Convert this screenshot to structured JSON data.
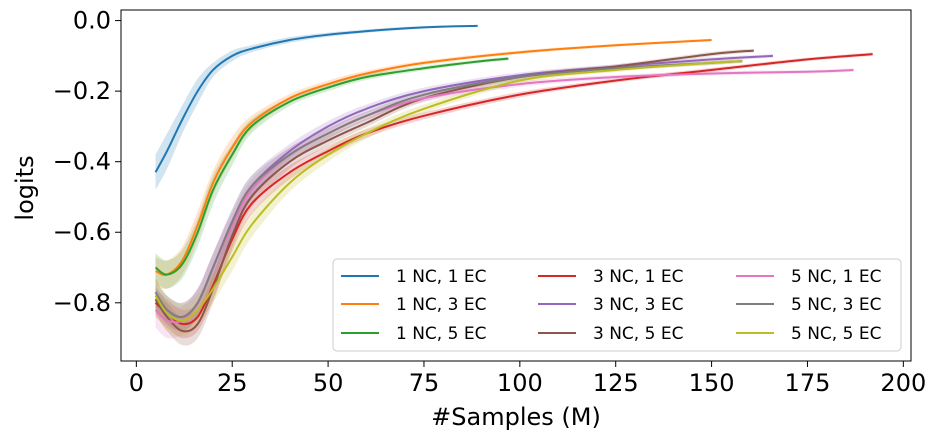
{
  "chart_data": {
    "type": "line",
    "title": "",
    "xlabel": "#Samples (M)",
    "ylabel": "logits",
    "xlim": [
      -4,
      202
    ],
    "ylim": [
      -0.965,
      0.03
    ],
    "xticks": [
      0,
      25,
      50,
      75,
      100,
      125,
      150,
      175,
      200
    ],
    "yticks": [
      0.0,
      -0.2,
      -0.4,
      -0.6,
      -0.8
    ],
    "xtick_labels": [
      "0",
      "25",
      "50",
      "75",
      "100",
      "125",
      "150",
      "175",
      "200"
    ],
    "ytick_labels": [
      "0.0",
      "−0.2",
      "−0.4",
      "−0.6",
      "−0.8"
    ],
    "grid": false,
    "legend_position": "lower-right",
    "legend_columns": 3,
    "series": [
      {
        "name": "1 NC, 1 EC",
        "color": "#1f77b4",
        "x": [
          5,
          8,
          12,
          16,
          20,
          25,
          30,
          40,
          50,
          60,
          70,
          80,
          89
        ],
        "y": [
          -0.43,
          -0.37,
          -0.28,
          -0.2,
          -0.14,
          -0.1,
          -0.08,
          -0.055,
          -0.04,
          -0.03,
          -0.022,
          -0.017,
          -0.015
        ],
        "band": [
          0.05,
          0.05,
          0.04,
          0.035,
          0.02,
          0.015,
          0.01,
          0.008,
          0.006,
          0.005,
          0.004,
          0.003,
          0.003
        ]
      },
      {
        "name": "1 NC, 3 EC",
        "color": "#ff7f0e",
        "x": [
          5,
          8,
          12,
          16,
          20,
          25,
          30,
          40,
          50,
          60,
          75,
          100,
          125,
          150
        ],
        "y": [
          -0.71,
          -0.72,
          -0.68,
          -0.58,
          -0.46,
          -0.36,
          -0.29,
          -0.22,
          -0.18,
          -0.15,
          -0.12,
          -0.09,
          -0.07,
          -0.055
        ],
        "band": [
          0.04,
          0.04,
          0.04,
          0.04,
          0.035,
          0.03,
          0.02,
          0.012,
          0.01,
          0.008,
          0.006,
          0.005,
          0.004,
          0.004
        ]
      },
      {
        "name": "1 NC, 5 EC",
        "color": "#2ca02c",
        "x": [
          5,
          8,
          12,
          16,
          20,
          25,
          30,
          40,
          50,
          60,
          75,
          90,
          97
        ],
        "y": [
          -0.7,
          -0.72,
          -0.69,
          -0.6,
          -0.48,
          -0.38,
          -0.3,
          -0.23,
          -0.19,
          -0.16,
          -0.135,
          -0.115,
          -0.108
        ],
        "band": [
          0.04,
          0.04,
          0.04,
          0.04,
          0.04,
          0.03,
          0.02,
          0.012,
          0.01,
          0.008,
          0.006,
          0.005,
          0.005
        ]
      },
      {
        "name": "3 NC, 1 EC",
        "color": "#d62728",
        "x": [
          5,
          8,
          12,
          16,
          20,
          25,
          30,
          40,
          50,
          60,
          75,
          100,
          125,
          150,
          175,
          192
        ],
        "y": [
          -0.8,
          -0.83,
          -0.86,
          -0.84,
          -0.75,
          -0.62,
          -0.52,
          -0.43,
          -0.37,
          -0.32,
          -0.27,
          -0.21,
          -0.17,
          -0.14,
          -0.11,
          -0.095
        ],
        "band": [
          0.04,
          0.04,
          0.04,
          0.04,
          0.04,
          0.035,
          0.03,
          0.02,
          0.015,
          0.012,
          0.01,
          0.008,
          0.006,
          0.006,
          0.005,
          0.005
        ]
      },
      {
        "name": "3 NC, 3 EC",
        "color": "#9467bd",
        "x": [
          5,
          8,
          12,
          16,
          20,
          25,
          30,
          40,
          50,
          60,
          75,
          100,
          125,
          150,
          166
        ],
        "y": [
          -0.78,
          -0.82,
          -0.84,
          -0.8,
          -0.7,
          -0.57,
          -0.47,
          -0.37,
          -0.3,
          -0.25,
          -0.2,
          -0.155,
          -0.13,
          -0.11,
          -0.1
        ],
        "band": [
          0.04,
          0.04,
          0.04,
          0.04,
          0.04,
          0.035,
          0.03,
          0.02,
          0.015,
          0.012,
          0.01,
          0.008,
          0.006,
          0.006,
          0.005
        ]
      },
      {
        "name": "3 NC, 5 EC",
        "color": "#8c564b",
        "x": [
          5,
          8,
          12,
          16,
          20,
          25,
          30,
          40,
          50,
          60,
          75,
          100,
          125,
          150,
          161
        ],
        "y": [
          -0.79,
          -0.84,
          -0.88,
          -0.86,
          -0.76,
          -0.61,
          -0.5,
          -0.4,
          -0.34,
          -0.29,
          -0.22,
          -0.16,
          -0.13,
          -0.095,
          -0.085
        ],
        "band": [
          0.04,
          0.04,
          0.04,
          0.04,
          0.04,
          0.035,
          0.03,
          0.02,
          0.015,
          0.012,
          0.01,
          0.008,
          0.006,
          0.006,
          0.005
        ]
      },
      {
        "name": "5 NC, 1 EC",
        "color": "#e377c2",
        "x": [
          5,
          8,
          12,
          16,
          20,
          25,
          30,
          40,
          50,
          60,
          75,
          100,
          125,
          150,
          175,
          187
        ],
        "y": [
          -0.82,
          -0.85,
          -0.85,
          -0.8,
          -0.7,
          -0.58,
          -0.48,
          -0.38,
          -0.32,
          -0.27,
          -0.22,
          -0.18,
          -0.16,
          -0.15,
          -0.145,
          -0.14
        ],
        "band": [
          0.05,
          0.05,
          0.04,
          0.04,
          0.04,
          0.035,
          0.03,
          0.02,
          0.015,
          0.012,
          0.01,
          0.008,
          0.006,
          0.006,
          0.005,
          0.005
        ]
      },
      {
        "name": "5 NC, 3 EC",
        "color": "#7f7f7f",
        "x": [
          5,
          8,
          12,
          16,
          20,
          25,
          30,
          40,
          50,
          60,
          75,
          100,
          125,
          150,
          158
        ],
        "y": [
          -0.77,
          -0.82,
          -0.84,
          -0.8,
          -0.7,
          -0.57,
          -0.47,
          -0.38,
          -0.32,
          -0.27,
          -0.21,
          -0.16,
          -0.135,
          -0.12,
          -0.115
        ],
        "band": [
          0.04,
          0.04,
          0.04,
          0.04,
          0.04,
          0.035,
          0.03,
          0.02,
          0.015,
          0.012,
          0.01,
          0.008,
          0.006,
          0.006,
          0.005
        ]
      },
      {
        "name": "5 NC, 5 EC",
        "color": "#bcbd22",
        "x": [
          5,
          8,
          12,
          16,
          20,
          25,
          30,
          40,
          50,
          60,
          75,
          100,
          125,
          150,
          158
        ],
        "y": [
          -0.78,
          -0.83,
          -0.85,
          -0.82,
          -0.76,
          -0.67,
          -0.58,
          -0.46,
          -0.38,
          -0.32,
          -0.25,
          -0.17,
          -0.14,
          -0.12,
          -0.115
        ],
        "band": [
          0.05,
          0.05,
          0.045,
          0.045,
          0.04,
          0.04,
          0.035,
          0.025,
          0.02,
          0.015,
          0.012,
          0.008,
          0.006,
          0.006,
          0.005
        ]
      }
    ]
  }
}
